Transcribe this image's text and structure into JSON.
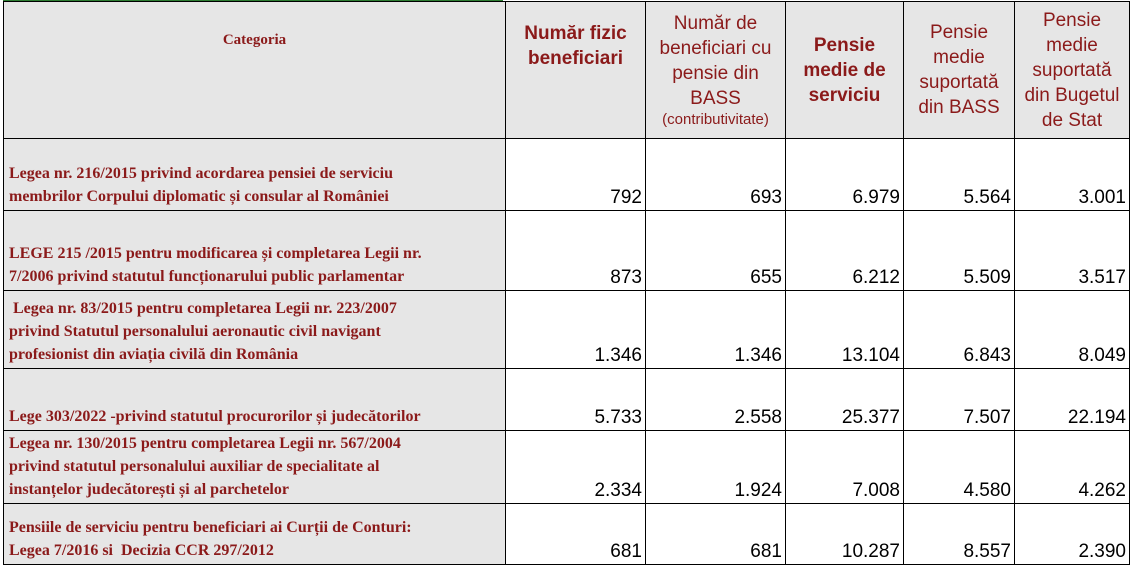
{
  "header": {
    "categoria": "Categoria",
    "col_numar_fizic": [
      "Număr fizic",
      "beneficiari"
    ],
    "col_numar_bass": [
      "Număr de",
      "beneficiari cu",
      "pensie din",
      "BASS"
    ],
    "col_numar_bass_sub": "(contributivitate)",
    "col_pensie_medie": [
      "Pensie",
      "medie de",
      "serviciu"
    ],
    "col_pensie_bass": [
      "Pensie",
      "medie",
      "suportată",
      "din BASS"
    ],
    "col_pensie_buget": [
      "Pensie",
      "medie",
      "suportată",
      "din Bugetul",
      "de Stat"
    ]
  },
  "rows": [
    {
      "category": [
        "Legea nr. 216/2015 privind acordarea pensiei de serviciu",
        "membrilor Corpului diplomatic și consular al României"
      ],
      "numar_fizic": "792",
      "numar_bass": "693",
      "pensie_medie": "6.979",
      "pensie_bass": "5.564",
      "pensie_buget": "3.001"
    },
    {
      "category": [
        "LEGE 215 /2015  pentru modificarea și completarea Legii nr.",
        "7/2006 privind statutul funcționarului public parlamentar"
      ],
      "numar_fizic": "873",
      "numar_bass": "655",
      "pensie_medie": "6.212",
      "pensie_bass": "5.509",
      "pensie_buget": "3.517"
    },
    {
      "category": [
        " Legea nr. 83/2015 pentru completarea Legii nr. 223/2007",
        "privind Statutul personalului aeronautic civil navigant",
        "profesionist din aviația civilă din România"
      ],
      "numar_fizic": "1.346",
      "numar_bass": "1.346",
      "pensie_medie": "13.104",
      "pensie_bass": "6.843",
      "pensie_buget": "8.049"
    },
    {
      "category": [
        "Lege 303/2022 -privind statutul procurorilor și judecătorilor"
      ],
      "numar_fizic": "5.733",
      "numar_bass": "2.558",
      "pensie_medie": "25.377",
      "pensie_bass": "7.507",
      "pensie_buget": "22.194"
    },
    {
      "category": [
        "Legea nr. 130/2015 pentru completarea Legii nr. 567/2004",
        "privind statutul personalului auxiliar de specialitate al",
        "instanțelor judecătorești și al parchetelor"
      ],
      "numar_fizic": "2.334",
      "numar_bass": "1.924",
      "pensie_medie": "7.008",
      "pensie_bass": "4.580",
      "pensie_buget": "4.262"
    },
    {
      "category": [
        "Pensiile de serviciu pentru beneficiari ai Curții de Conturi:",
        "Legea 7/2016 si  Decizia CCR 297/2012"
      ],
      "numar_fizic": "681",
      "numar_bass": "681",
      "pensie_medie": "10.287",
      "pensie_bass": "8.557",
      "pensie_buget": "2.390"
    }
  ]
}
